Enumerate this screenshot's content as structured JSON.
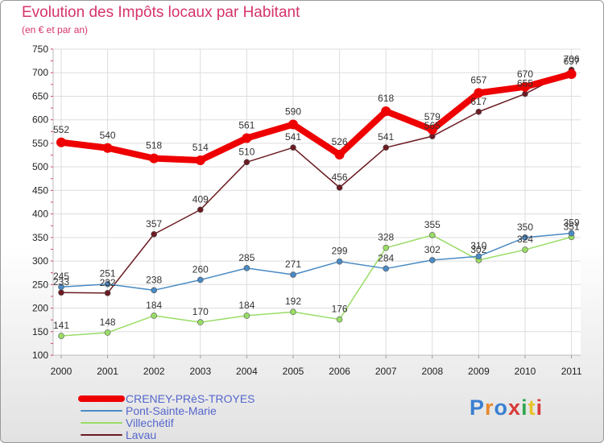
{
  "header": {
    "title": "Evolution des Impôts locaux par Habitant",
    "subtitle": "(en € et par an)"
  },
  "logo": {
    "text": "Proxiti",
    "colors": [
      "#3a7fd1",
      "#e8892c",
      "#3a7fd1",
      "#d93b3b",
      "#2fa84f",
      "#e8c22c",
      "#d93b3b"
    ]
  },
  "chart_data": {
    "type": "line",
    "categories": [
      "2000",
      "2001",
      "2002",
      "2003",
      "2004",
      "2005",
      "2006",
      "2007",
      "2008",
      "2009",
      "2010",
      "2011"
    ],
    "ylim": [
      100,
      750
    ],
    "yticks": [
      100,
      150,
      200,
      250,
      300,
      350,
      400,
      450,
      500,
      550,
      600,
      650,
      700,
      750
    ],
    "grid": true,
    "legend": "bottom-left",
    "series": [
      {
        "name": "CRENEY-PRèS-TROYES",
        "color": "#ee0000",
        "values": [
          552,
          540,
          518,
          514,
          561,
          590,
          526,
          618,
          579,
          657,
          670,
          697
        ]
      },
      {
        "name": "Pont-Sainte-Marie",
        "color": "#4a8ac4",
        "values": [
          245,
          251,
          238,
          260,
          285,
          271,
          299,
          284,
          302,
          310,
          350,
          359
        ]
      },
      {
        "name": "Villechétif",
        "color": "#99dd66",
        "values": [
          141,
          148,
          184,
          170,
          184,
          192,
          176,
          328,
          355,
          302,
          324,
          351
        ]
      },
      {
        "name": "Lavau",
        "color": "#6b1b22",
        "values": [
          233,
          232,
          357,
          409,
          510,
          541,
          456,
          541,
          565,
          617,
          655,
          706
        ]
      }
    ]
  }
}
